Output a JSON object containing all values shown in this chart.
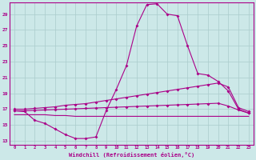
{
  "xlabel": "Windchill (Refroidissement éolien,°C)",
  "bg_color": "#cce8e8",
  "line_color": "#aa0088",
  "grid_color": "#aacccc",
  "yticks": [
    13,
    15,
    17,
    19,
    21,
    23,
    25,
    27,
    29
  ],
  "xticks": [
    0,
    1,
    2,
    3,
    4,
    5,
    6,
    7,
    8,
    9,
    10,
    11,
    12,
    13,
    14,
    15,
    16,
    17,
    18,
    19,
    20,
    21,
    22,
    23
  ],
  "ylim": [
    12.5,
    30.5
  ],
  "xlim": [
    -0.5,
    23.5
  ],
  "series1_x": [
    0,
    1,
    2,
    3,
    4,
    5,
    6,
    7,
    8,
    9,
    10,
    11,
    12,
    13,
    14,
    15,
    16,
    17,
    18,
    19,
    20,
    21,
    22,
    23
  ],
  "series1_y": [
    16.8,
    16.7,
    15.6,
    15.2,
    14.5,
    13.8,
    13.3,
    13.3,
    13.5,
    16.8,
    19.5,
    22.5,
    27.5,
    30.2,
    30.3,
    29.0,
    28.8,
    25.0,
    21.5,
    21.3,
    20.5,
    19.3,
    17.0,
    16.5
  ],
  "series2_x": [
    0,
    1,
    2,
    3,
    4,
    5,
    6,
    7,
    8,
    9,
    10,
    11,
    12,
    13,
    14,
    15,
    16,
    17,
    18,
    19,
    20,
    21,
    22,
    23
  ],
  "series2_y": [
    17.0,
    17.0,
    17.1,
    17.2,
    17.3,
    17.5,
    17.6,
    17.7,
    17.9,
    18.1,
    18.3,
    18.5,
    18.7,
    18.9,
    19.1,
    19.3,
    19.5,
    19.7,
    19.9,
    20.1,
    20.3,
    19.8,
    17.2,
    16.7
  ],
  "series3_x": [
    0,
    1,
    2,
    3,
    4,
    5,
    6,
    7,
    8,
    9,
    10,
    11,
    12,
    13,
    14,
    15,
    16,
    17,
    18,
    19,
    20,
    21,
    22,
    23
  ],
  "series3_y": [
    16.8,
    16.8,
    16.85,
    16.9,
    16.95,
    17.0,
    17.05,
    17.1,
    17.15,
    17.2,
    17.25,
    17.3,
    17.35,
    17.4,
    17.45,
    17.5,
    17.55,
    17.6,
    17.65,
    17.7,
    17.75,
    17.4,
    16.9,
    16.5
  ],
  "series4_x": [
    0,
    1,
    2,
    3,
    4,
    5,
    6,
    7,
    8,
    9,
    10,
    11,
    12,
    13,
    14,
    15,
    16,
    17,
    18,
    19,
    20,
    21,
    22,
    23
  ],
  "series4_y": [
    16.3,
    16.3,
    16.3,
    16.3,
    16.2,
    16.2,
    16.1,
    16.1,
    16.1,
    16.1,
    16.1,
    16.1,
    16.1,
    16.1,
    16.1,
    16.1,
    16.1,
    16.1,
    16.1,
    16.1,
    16.1,
    16.1,
    16.1,
    16.1
  ],
  "marker": "D",
  "markersize": 2,
  "linewidth": 0.8
}
